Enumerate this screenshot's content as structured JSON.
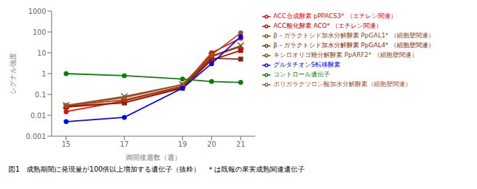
{
  "chart_data": {
    "type": "line",
    "title": "図1　成熟期間に発現量が100倍以上増加する遺伝子（抜粋）　＊は既報の果実成熟関連遺伝子",
    "xlabel": "満開後週数（週）",
    "ylabel": "シグナル強度",
    "x": [
      15,
      17,
      19,
      20,
      21
    ],
    "series": [
      {
        "name": "ACC合成酵素  pPPACS3*  （エチレン関連）",
        "color": "#ff0000",
        "marker": "circle",
        "values": [
          0.015,
          0.05,
          0.25,
          10.0,
          50.0
        ]
      },
      {
        "name": "ACC酸化酵素  ACO*  （エチレン関連）",
        "color": "#cc0000",
        "marker": "square",
        "values": [
          0.028,
          0.04,
          0.2,
          4.5,
          13.0
        ]
      },
      {
        "name": "β－ガラクトシド加水分解酵素  PpGAL1*  （細胞壁関連）",
        "color": "#8B4513",
        "marker": "cross",
        "values": [
          0.03,
          0.08,
          0.3,
          7.0,
          22.0
        ]
      },
      {
        "name": "β－ガラクトシド加水分解酵素  PpGAL4*  （細胞壁関連）",
        "color": "#8B2500",
        "marker": "square",
        "values": [
          0.025,
          0.04,
          0.22,
          5.5,
          5.0
        ]
      },
      {
        "name": "キシロオリゴ糖分解酵素  PpARF2*  （細胞壁関連）",
        "color": "#8B4513",
        "marker": "triangle",
        "values": [
          0.03,
          0.055,
          0.25,
          6.5,
          20.0
        ]
      },
      {
        "name": "ポリガラクツロン酸加水分解酵素（細胞壁関連）",
        "color": "#A0522D",
        "marker": "circle",
        "values": [
          0.03,
          0.07,
          0.3,
          8.0,
          90.0
        ]
      },
      {
        "name": "グルタチオンS転移酵素",
        "color": "#0000ff",
        "marker": "circle",
        "values": [
          0.005,
          0.008,
          0.2,
          3.0,
          60.0
        ]
      },
      {
        "name": "コントロール遺伝子",
        "color": "#008000",
        "marker": "circle",
        "values": [
          1.0,
          0.8,
          0.55,
          0.42,
          0.38
        ]
      }
    ],
    "xlim": [
      14.5,
      21.5
    ],
    "xticks": [
      15,
      17,
      19,
      20,
      21
    ],
    "ylim": [
      0.001,
      1000
    ],
    "yticks": [
      0.001,
      0.01,
      0.1,
      1,
      10,
      100,
      1000
    ],
    "log": "y",
    "grid": false,
    "legend": "right"
  }
}
